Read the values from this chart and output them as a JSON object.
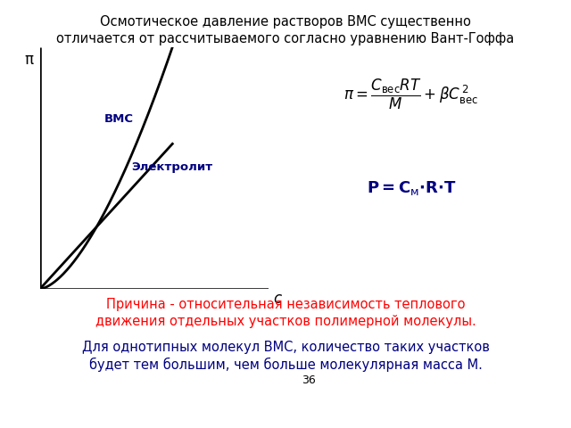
{
  "title_line1": "Осмотическое давление растворов ВМС существенно",
  "title_line2": "отличается от рассчитываемого согласно уравнению Вант-Гоффа",
  "label_vmc": "ВМС",
  "label_electrolyte": "Электролит",
  "label_x": "с",
  "label_y": "π",
  "text_reason1": "Причина - относительная независимость теплового",
  "text_reason2": "движения отдельных участков полимерной молекулы.",
  "text_for1": "Для однотипных молекул ВМС, количество таких участков",
  "text_for2": "будет тем большим, чем больше молекулярная масса М.",
  "page_number": "36",
  "bg_color": "#ffffff",
  "curve_color": "#000000",
  "label_vmc_color": "#000080",
  "label_electrolyte_color": "#000080",
  "formula_color": "#000000",
  "formula_p_color": "#000080",
  "reason_color": "#ff0000",
  "for_color": "#000080",
  "title_color": "#000000"
}
